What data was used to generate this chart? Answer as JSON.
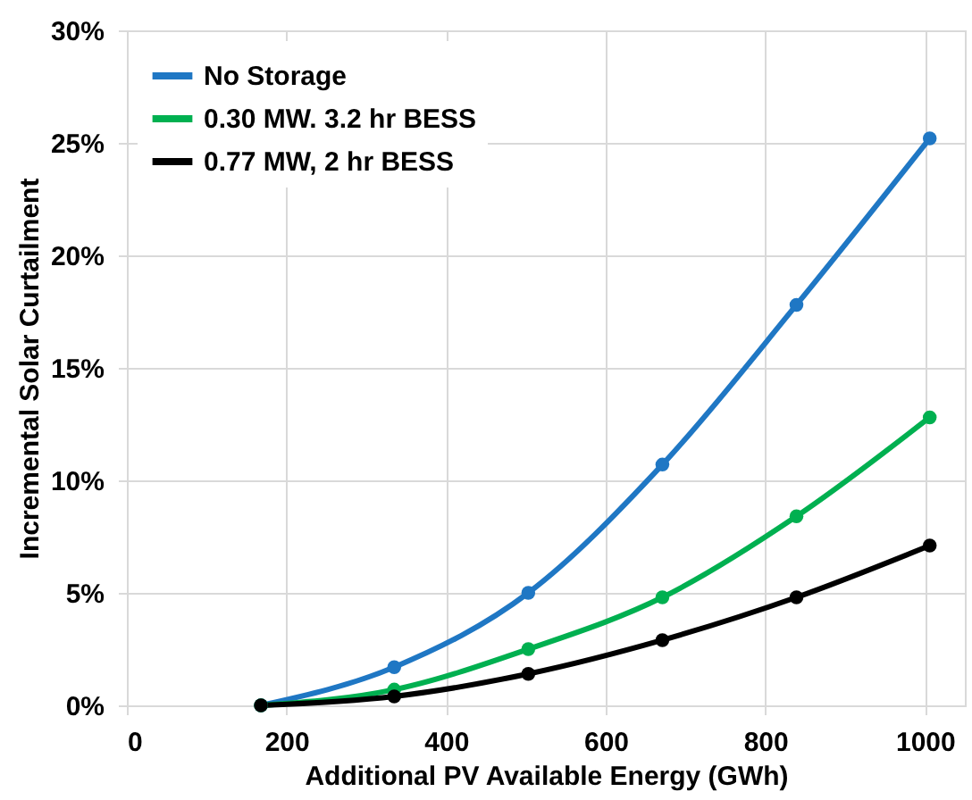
{
  "chart_data": {
    "type": "line",
    "xlabel": "Additional PV Available Energy (GWh)",
    "ylabel": "Incremental Solar Curtailment",
    "x": [
      168,
      335,
      503,
      671,
      839,
      1006
    ],
    "series": [
      {
        "name": "No Storage",
        "color": "#1f77c4",
        "values": [
          0,
          1.7,
          5.0,
          10.7,
          17.8,
          25.2
        ]
      },
      {
        "name": "0.30 MW. 3.2 hr BESS",
        "color": "#00b050",
        "values": [
          0,
          0.7,
          2.5,
          4.8,
          8.4,
          12.8
        ]
      },
      {
        "name": "0.77 MW, 2 hr BESS",
        "color": "#000000",
        "values": [
          0,
          0.4,
          1.4,
          2.9,
          4.8,
          7.1
        ]
      }
    ],
    "xlim": [
      0,
      1050
    ],
    "xticks": [
      0,
      200,
      400,
      600,
      800,
      1000
    ],
    "ylim": [
      0,
      30
    ],
    "yticks": [
      {
        "value": 0,
        "label": "0%"
      },
      {
        "value": 5,
        "label": "5%"
      },
      {
        "value": 10,
        "label": "10%"
      },
      {
        "value": 15,
        "label": "15%"
      },
      {
        "value": 20,
        "label": "20%"
      },
      {
        "value": 25,
        "label": "25%"
      },
      {
        "value": 30,
        "label": "30%"
      }
    ],
    "grid": true,
    "legend": "top left",
    "marker": "circle",
    "line_style": "solid"
  }
}
